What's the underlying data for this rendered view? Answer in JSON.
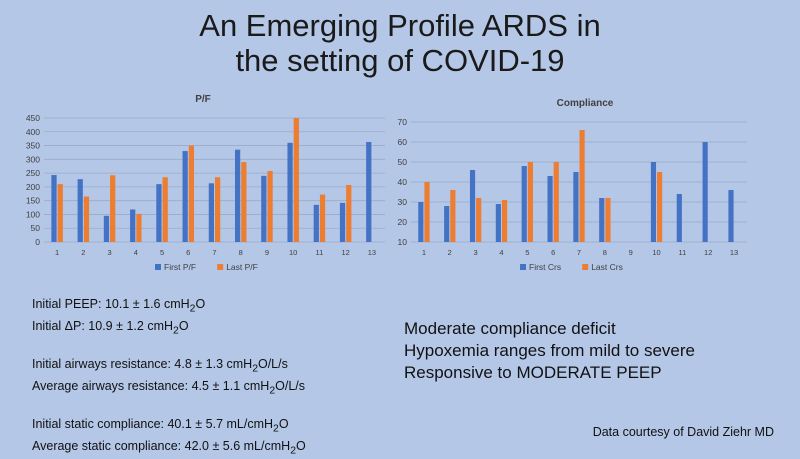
{
  "slide": {
    "title_line1": "An Emerging Profile ARDS in",
    "title_line2": "the setting of COVID-19",
    "credit": "Data courtesy of David Ziehr MD"
  },
  "stats": {
    "peep_label": "Initial PEEP: 10.1",
    "peep_pm": "1.6 cmH",
    "peep_unit": "O",
    "dp_label": "Initial ",
    "dp_delta": "ΔP",
    "dp_value": ": 10.9",
    "dp_pm": "1.2 cmH",
    "dp_unit": "O",
    "iar_label": "Initial airways resistance: 4.8",
    "iar_pm": "1.3 cmH",
    "iar_unit": "O/L/s",
    "aar_label": "Average airways resistance: 4.5",
    "aar_pm": "1.1 cmH",
    "aar_unit": "O/L/s",
    "isc_label": "Initial static compliance: 40.1",
    "isc_pm": "5.7 mL/cmH",
    "isc_unit": "O",
    "asc_label": "Average static compliance: 42.0",
    "asc_pm": "5.6 mL/cmH",
    "asc_unit": "O",
    "pm_symbol": "±",
    "sub2": "2"
  },
  "bullets": [
    "Moderate compliance deficit",
    "Hypoxemia ranges from mild to severe",
    "Responsive to MODERATE PEEP"
  ],
  "colors": {
    "series1": "#4472c4",
    "series2": "#ed7d31",
    "grid": "#9aabc8",
    "text": "#404040"
  },
  "chart_data": [
    {
      "type": "bar",
      "title": "P/F",
      "categories": [
        "1",
        "2",
        "3",
        "4",
        "5",
        "6",
        "7",
        "8",
        "9",
        "10",
        "11",
        "12",
        "13"
      ],
      "series": [
        {
          "name": "First P/F",
          "values": [
            243,
            228,
            95,
            118,
            210,
            330,
            213,
            335,
            240,
            360,
            135,
            142,
            363
          ]
        },
        {
          "name": "Last P/F",
          "values": [
            210,
            165,
            242,
            102,
            235,
            350,
            235,
            290,
            258,
            450,
            172,
            207,
            null
          ]
        }
      ],
      "ylim": [
        0,
        450
      ],
      "yticks": [
        0,
        50,
        100,
        150,
        200,
        250,
        300,
        350,
        400,
        450
      ],
      "legend": "bottom"
    },
    {
      "type": "bar",
      "title": "Compliance",
      "categories": [
        "1",
        "2",
        "3",
        "4",
        "5",
        "6",
        "7",
        "8",
        "9",
        "10",
        "11",
        "12",
        "13"
      ],
      "series": [
        {
          "name": "First Crs",
          "values": [
            30,
            28,
            46,
            29,
            48,
            43,
            45,
            32,
            null,
            50,
            34,
            60,
            36
          ]
        },
        {
          "name": "Last Crs",
          "values": [
            40,
            36,
            32,
            31,
            50,
            50,
            66,
            32,
            null,
            45,
            null,
            null,
            null
          ]
        }
      ],
      "ylim": [
        10,
        70
      ],
      "yticks": [
        10,
        20,
        30,
        40,
        50,
        60,
        70
      ],
      "legend": "bottom"
    }
  ]
}
